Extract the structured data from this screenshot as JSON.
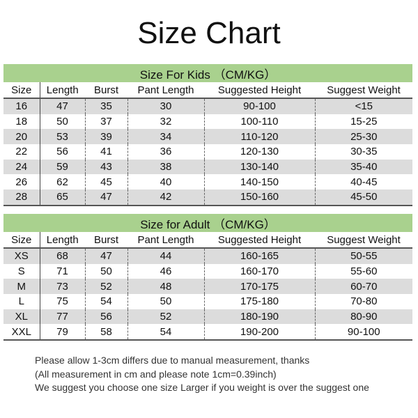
{
  "title": "Size Chart",
  "columns": [
    "Size",
    "Length",
    "Burst",
    "Pant Length",
    "Suggested Height",
    "Suggest Weight"
  ],
  "kids": {
    "caption": "Size For Kids （CM/KG）",
    "rows": [
      [
        "16",
        "47",
        "35",
        "30",
        "90-100",
        "<15"
      ],
      [
        "18",
        "50",
        "37",
        "32",
        "100-110",
        "15-25"
      ],
      [
        "20",
        "53",
        "39",
        "34",
        "110-120",
        "25-30"
      ],
      [
        "22",
        "56",
        "41",
        "36",
        "120-130",
        "30-35"
      ],
      [
        "24",
        "59",
        "43",
        "38",
        "130-140",
        "35-40"
      ],
      [
        "26",
        "62",
        "45",
        "40",
        "140-150",
        "40-45"
      ],
      [
        "28",
        "65",
        "47",
        "42",
        "150-160",
        "45-50"
      ]
    ]
  },
  "adult": {
    "caption": "Size for Adult （CM/KG）",
    "rows": [
      [
        "XS",
        "68",
        "47",
        "44",
        "160-165",
        "50-55"
      ],
      [
        "S",
        "71",
        "50",
        "46",
        "160-170",
        "55-60"
      ],
      [
        "M",
        "73",
        "52",
        "48",
        "170-175",
        "60-70"
      ],
      [
        "L",
        "75",
        "54",
        "50",
        "175-180",
        "70-80"
      ],
      [
        "XL",
        "77",
        "56",
        "52",
        "180-190",
        "80-90"
      ],
      [
        "XXL",
        "79",
        "58",
        "54",
        "190-200",
        "90-100"
      ]
    ]
  },
  "notes": [
    "Please allow 1-3cm differs due to manual measurement, thanks",
    "(All measurement in cm and please note 1cm=0.39inch)",
    "We suggest you choose one size Larger if you weight is over the suggest one"
  ],
  "colors": {
    "caption_bg": "#a9d18e",
    "stripe": "#dcdcdc"
  }
}
